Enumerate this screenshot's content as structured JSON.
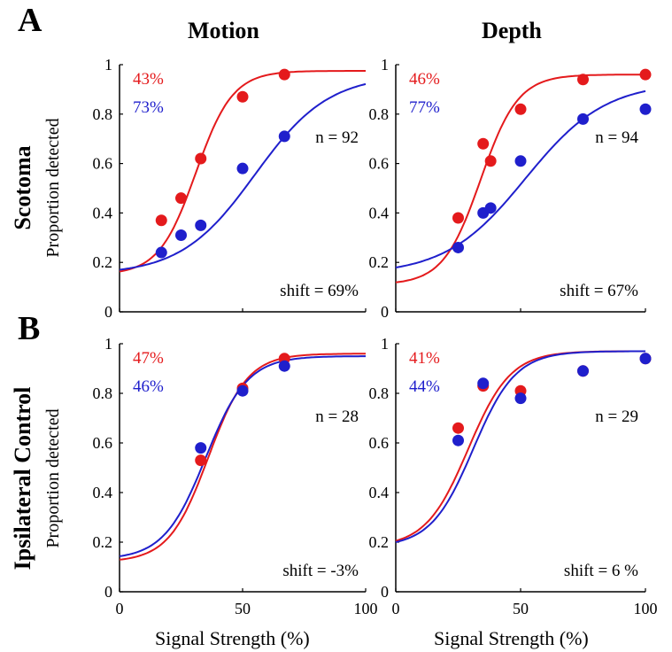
{
  "figure": {
    "panel_a": "A",
    "panel_b": "B",
    "col_titles": [
      "Motion",
      "Depth"
    ],
    "row_titles": [
      "Scotoma",
      "Ipsilateral Control"
    ],
    "ylabel": "Proportion detected",
    "xlabel": "Signal Strength (%)"
  },
  "colors": {
    "red": "#e41a1c",
    "blue": "#1f1fcc"
  },
  "chart_data": [
    {
      "type": "scatter",
      "row": "Scotoma",
      "col": "Motion",
      "xlim": [
        0,
        100
      ],
      "ylim": [
        0,
        1
      ],
      "xticks": [
        0,
        50,
        100
      ],
      "yticks": [
        0,
        0.2,
        0.4,
        0.6,
        0.8,
        1
      ],
      "show_xticklabels": false,
      "labels": {
        "red_pct": "43%",
        "blue_pct": "73%",
        "n": "n = 92",
        "shift": "shift = 69%"
      },
      "series": [
        {
          "color": "red",
          "points": [
            [
              17,
              0.37
            ],
            [
              25,
              0.46
            ],
            [
              33,
              0.62
            ],
            [
              50,
              0.87
            ],
            [
              67,
              0.96
            ]
          ],
          "fit": {
            "g": 0.15,
            "top": 0.975,
            "mid": 31,
            "s": 7.5
          }
        },
        {
          "color": "blue",
          "points": [
            [
              17,
              0.24
            ],
            [
              25,
              0.31
            ],
            [
              33,
              0.35
            ],
            [
              50,
              0.58
            ],
            [
              67,
              0.71
            ]
          ],
          "fit": {
            "g": 0.15,
            "top": 0.96,
            "mid": 55,
            "s": 15
          }
        }
      ]
    },
    {
      "type": "scatter",
      "row": "Scotoma",
      "col": "Depth",
      "xlim": [
        0,
        100
      ],
      "ylim": [
        0,
        1
      ],
      "xticks": [
        0,
        50,
        100
      ],
      "yticks": [
        0,
        0.2,
        0.4,
        0.6,
        0.8,
        1
      ],
      "show_xticklabels": false,
      "labels": {
        "red_pct": "46%",
        "blue_pct": "77%",
        "n": "n = 94",
        "shift": "shift = 67%"
      },
      "series": [
        {
          "color": "red",
          "points": [
            [
              25,
              0.38
            ],
            [
              35,
              0.68
            ],
            [
              38,
              0.61
            ],
            [
              50,
              0.82
            ],
            [
              75,
              0.94
            ],
            [
              100,
              0.96
            ]
          ],
          "fit": {
            "g": 0.11,
            "top": 0.96,
            "mid": 34,
            "s": 7.5
          }
        },
        {
          "color": "blue",
          "points": [
            [
              25,
              0.26
            ],
            [
              35,
              0.4
            ],
            [
              38,
              0.42
            ],
            [
              50,
              0.61
            ],
            [
              75,
              0.78
            ],
            [
              100,
              0.82
            ]
          ],
          "fit": {
            "g": 0.15,
            "top": 0.93,
            "mid": 52,
            "s": 16
          }
        }
      ]
    },
    {
      "type": "scatter",
      "row": "Ipsilateral Control",
      "col": "Motion",
      "xlim": [
        0,
        100
      ],
      "ylim": [
        0,
        1
      ],
      "xticks": [
        0,
        50,
        100
      ],
      "yticks": [
        0,
        0.2,
        0.4,
        0.6,
        0.8,
        1
      ],
      "show_xticklabels": true,
      "labels": {
        "red_pct": "47%",
        "blue_pct": "46%",
        "n": "n = 28",
        "shift": "shift = -3%"
      },
      "series": [
        {
          "color": "red",
          "points": [
            [
              33,
              0.53
            ],
            [
              50,
              0.82
            ],
            [
              67,
              0.94
            ]
          ],
          "fit": {
            "g": 0.12,
            "top": 0.96,
            "mid": 36,
            "s": 8
          }
        },
        {
          "color": "blue",
          "points": [
            [
              33,
              0.58
            ],
            [
              50,
              0.81
            ],
            [
              67,
              0.91
            ]
          ],
          "fit": {
            "g": 0.13,
            "top": 0.95,
            "mid": 35,
            "s": 8.5
          }
        }
      ]
    },
    {
      "type": "scatter",
      "row": "Ipsilateral Control",
      "col": "Depth",
      "xlim": [
        0,
        100
      ],
      "ylim": [
        0,
        1
      ],
      "xticks": [
        0,
        50,
        100
      ],
      "yticks": [
        0,
        0.2,
        0.4,
        0.6,
        0.8,
        1
      ],
      "show_xticklabels": true,
      "labels": {
        "red_pct": "41%",
        "blue_pct": "44%",
        "n": "n = 29",
        "shift": "shift = 6 %"
      },
      "series": [
        {
          "color": "red",
          "points": [
            [
              25,
              0.66
            ],
            [
              35,
              0.83
            ],
            [
              50,
              0.81
            ],
            [
              75,
              0.89
            ],
            [
              100,
              0.94
            ]
          ],
          "fit": {
            "g": 0.18,
            "top": 0.97,
            "mid": 29,
            "s": 8.5
          }
        },
        {
          "color": "blue",
          "points": [
            [
              25,
              0.61
            ],
            [
              35,
              0.84
            ],
            [
              50,
              0.78
            ],
            [
              75,
              0.89
            ],
            [
              100,
              0.94
            ]
          ],
          "fit": {
            "g": 0.18,
            "top": 0.97,
            "mid": 31,
            "s": 8.5
          }
        }
      ]
    }
  ]
}
